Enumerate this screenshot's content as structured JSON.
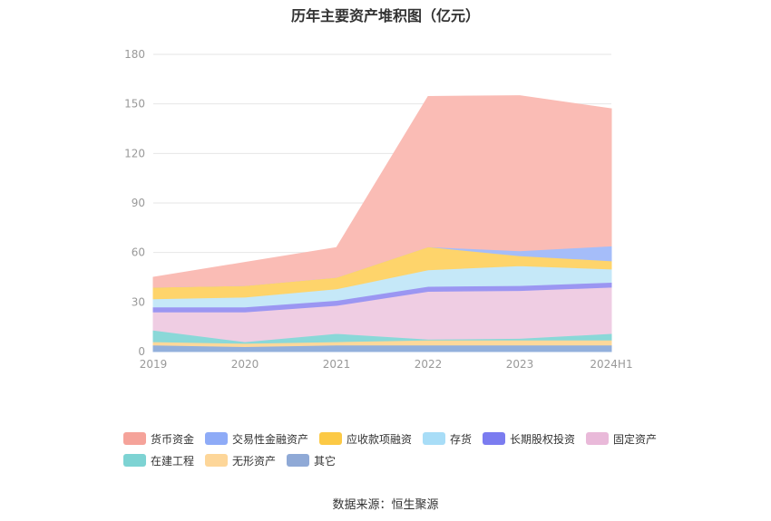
{
  "title": "历年主要资产堆积图（亿元）",
  "source": "数据来源：恒生聚源",
  "chart_data": {
    "type": "area",
    "stacked": true,
    "categories": [
      "2019",
      "2020",
      "2021",
      "2022",
      "2023",
      "2024H1"
    ],
    "ylim": [
      0,
      180
    ],
    "yticks": [
      0,
      30,
      60,
      90,
      120,
      150,
      180
    ],
    "grid": true,
    "legend_position": "bottom",
    "series": [
      {
        "name": "其它",
        "color": "#93b0dc",
        "values": [
          4,
          3,
          4,
          4,
          4,
          4
        ]
      },
      {
        "name": "无形资产",
        "color": "#fdd89a",
        "values": [
          2,
          2,
          2,
          3,
          3,
          3
        ]
      },
      {
        "name": "在建工程",
        "color": "#8ad8d8",
        "values": [
          7,
          1,
          5,
          0.5,
          1,
          4
        ]
      },
      {
        "name": "固定资产",
        "color": "#efcde3",
        "values": [
          11,
          18,
          17,
          29,
          29,
          28
        ]
      },
      {
        "name": "长期股权投资",
        "color": "#9b96f2",
        "values": [
          3,
          3,
          3,
          3,
          3,
          3
        ]
      },
      {
        "name": "存货",
        "color": "#c5e8f8",
        "values": [
          5,
          6,
          7,
          10,
          12,
          8
        ]
      },
      {
        "name": "应收款项融资",
        "color": "#fed46b",
        "values": [
          7,
          7,
          7,
          14,
          6,
          5
        ]
      },
      {
        "name": "交易性金融资产",
        "color": "#a5bdf9",
        "values": [
          0,
          0,
          0,
          0,
          3,
          9
        ]
      },
      {
        "name": "货币资金",
        "color": "#fabcb5",
        "values": [
          6,
          14,
          18,
          91,
          94,
          83
        ]
      }
    ],
    "legend_order": [
      "货币资金",
      "交易性金融资产",
      "应收款项融资",
      "存货",
      "长期股权投资",
      "固定资产",
      "在建工程",
      "无形资产",
      "其它"
    ],
    "legend_colors": {
      "货币资金": "#f5a39a",
      "交易性金融资产": "#8eabf7",
      "应收款项融资": "#fcc945",
      "存货": "#a8ddf7",
      "长期股权投资": "#7b7cf0",
      "固定资产": "#e9b9d9",
      "在建工程": "#7dd3d3",
      "无形资产": "#fdd699",
      "其它": "#8fa9d6"
    }
  }
}
